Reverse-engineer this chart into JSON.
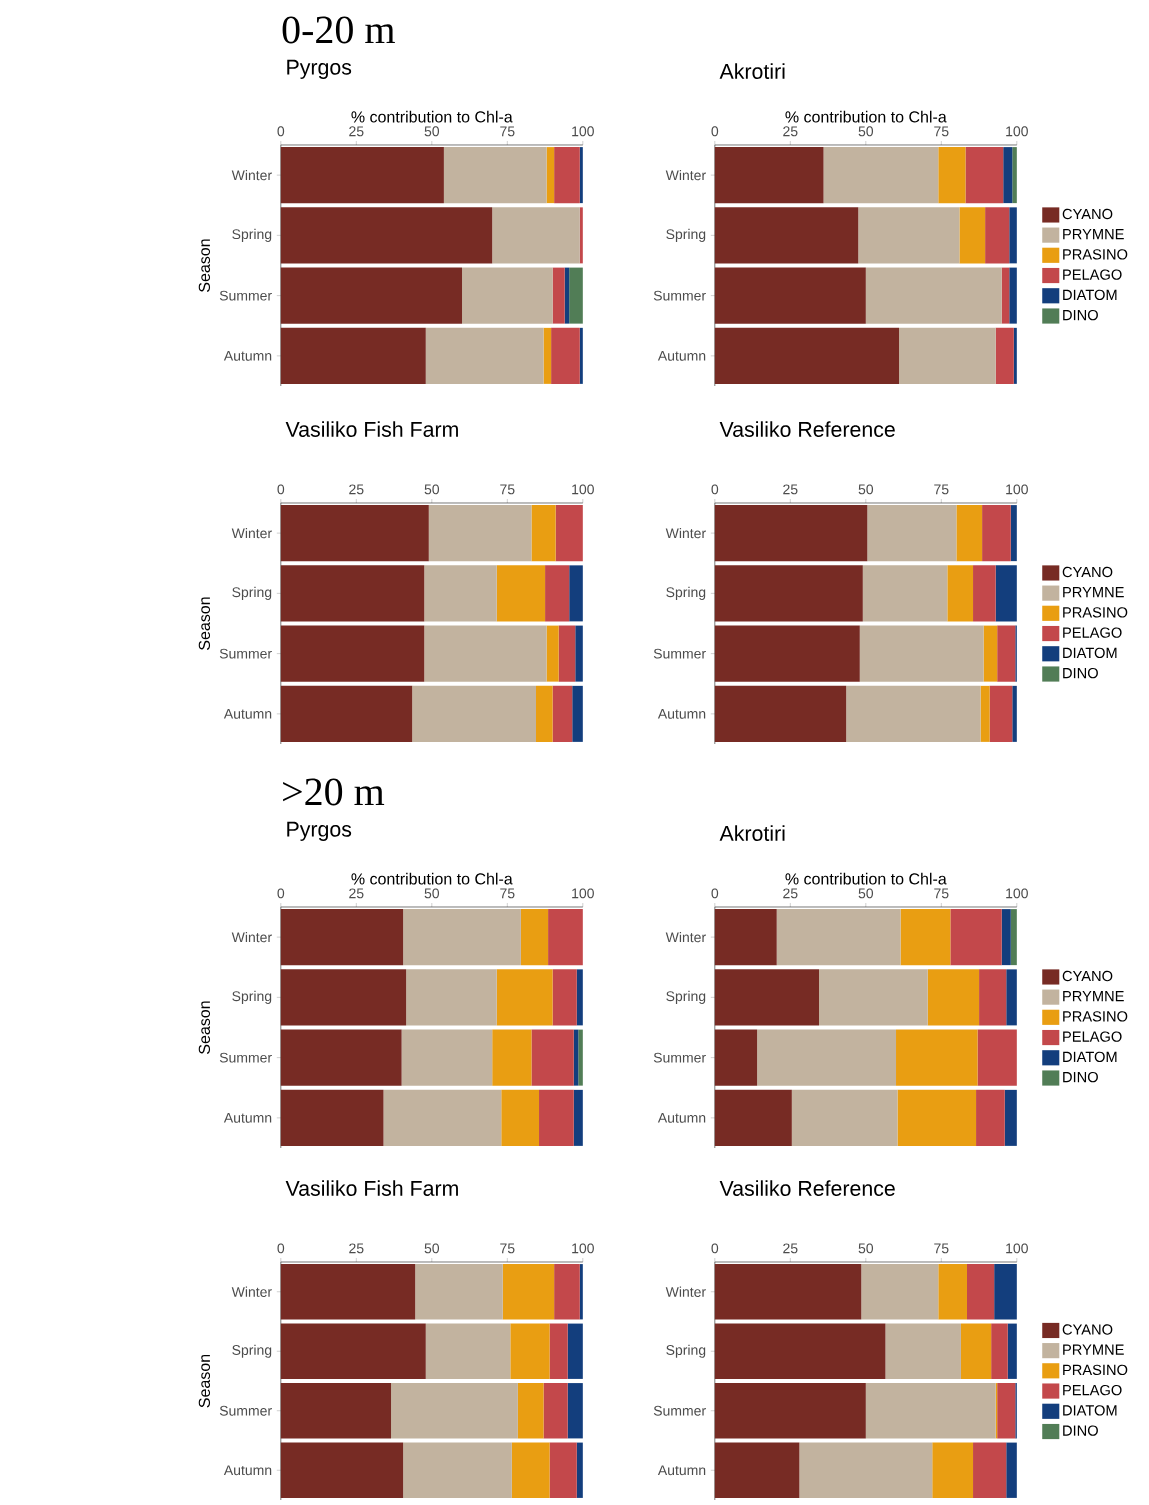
{
  "chart_data": [
    {
      "type": "bar",
      "orientation": "horizontal",
      "stacked": true,
      "title": "Pyrgos",
      "xlabel": "% contribution to Chl-a",
      "ylabel": "Season",
      "annotations": [
        "0-20 m"
      ],
      "categories": [
        "Winter",
        "Spring",
        "Summer",
        "Autumn"
      ],
      "xlim": [
        0,
        100
      ],
      "xticks": [
        0,
        25,
        50,
        75,
        100
      ],
      "series": [
        {
          "color": "#772b24",
          "values": [
            54,
            70,
            60,
            48
          ]
        },
        {
          "color": "#c2b39f",
          "values": [
            34,
            29,
            30,
            39
          ]
        },
        {
          "color": "#e99e12",
          "values": [
            2.5,
            0,
            0,
            2.5
          ]
        },
        {
          "color": "#c3484b",
          "values": [
            8.5,
            1,
            4,
            9.5
          ]
        },
        {
          "color": "#133e7d",
          "values": [
            1,
            0,
            1.5,
            1
          ]
        },
        {
          "color": "#517d56",
          "values": [
            0,
            0,
            4.5,
            0
          ]
        }
      ]
    },
    {
      "type": "bar",
      "orientation": "horizontal",
      "stacked": true,
      "title": "Akrotiri",
      "xlabel": "% contribution to Chl-a",
      "legend": "right",
      "categories": [
        "Winter",
        "Spring",
        "Summer",
        "Autumn"
      ],
      "xlim": [
        0,
        100
      ],
      "xticks": [
        0,
        25,
        50,
        75,
        100
      ],
      "series": [
        {
          "name": "CYANO",
          "color": "#772b24",
          "values": [
            36,
            47.5,
            50,
            61
          ]
        },
        {
          "name": "PRYMNE",
          "color": "#c2b39f",
          "values": [
            38,
            33.5,
            45,
            32
          ]
        },
        {
          "name": "PRASINO",
          "color": "#e99e12",
          "values": [
            9,
            8.5,
            0,
            0
          ]
        },
        {
          "name": "PELAGO",
          "color": "#c3484b",
          "values": [
            12.5,
            8,
            2.5,
            6
          ]
        },
        {
          "name": "DIATOM",
          "color": "#133e7d",
          "values": [
            3,
            2.5,
            2.5,
            1
          ]
        },
        {
          "name": "DINO",
          "color": "#517d56",
          "values": [
            1.5,
            0,
            0,
            0
          ]
        }
      ]
    },
    {
      "type": "bar",
      "orientation": "horizontal",
      "stacked": true,
      "title": "Vasiliko Fish Farm",
      "ylabel": "Season",
      "categories": [
        "Winter",
        "Spring",
        "Summer",
        "Autumn"
      ],
      "xlim": [
        0,
        100
      ],
      "xticks": [
        0,
        25,
        50,
        75,
        100
      ],
      "series": [
        {
          "color": "#772b24",
          "values": [
            49,
            47.5,
            47.5,
            43.5
          ]
        },
        {
          "color": "#c2b39f",
          "values": [
            34,
            24,
            40.5,
            41
          ]
        },
        {
          "color": "#e99e12",
          "values": [
            8,
            16,
            4,
            5.5
          ]
        },
        {
          "color": "#c3484b",
          "values": [
            9,
            8,
            5.5,
            6.5
          ]
        },
        {
          "color": "#133e7d",
          "values": [
            0,
            4.5,
            2.5,
            3.5
          ]
        },
        {
          "color": "#517d56",
          "values": [
            0,
            0,
            0,
            0
          ]
        }
      ]
    },
    {
      "type": "bar",
      "orientation": "horizontal",
      "stacked": true,
      "title": "Vasiliko Reference",
      "legend": "right",
      "categories": [
        "Winter",
        "Spring",
        "Summer",
        "Autumn"
      ],
      "xlim": [
        0,
        100
      ],
      "xticks": [
        0,
        25,
        50,
        75,
        100
      ],
      "series": [
        {
          "name": "CYANO",
          "color": "#772b24",
          "values": [
            50.5,
            49,
            48,
            43.5
          ]
        },
        {
          "name": "PRYMNE",
          "color": "#c2b39f",
          "values": [
            29.5,
            28,
            41,
            44.5
          ]
        },
        {
          "name": "PRASINO",
          "color": "#e99e12",
          "values": [
            8.5,
            8.5,
            4.5,
            3
          ]
        },
        {
          "name": "PELAGO",
          "color": "#c3484b",
          "values": [
            9.5,
            7.5,
            6,
            7.5
          ]
        },
        {
          "name": "DIATOM",
          "color": "#133e7d",
          "values": [
            2,
            7,
            0.5,
            1.5
          ]
        },
        {
          "name": "DINO",
          "color": "#517d56",
          "values": [
            0,
            0,
            0,
            0
          ]
        }
      ]
    },
    {
      "type": "bar",
      "orientation": "horizontal",
      "stacked": true,
      "title": "Pyrgos",
      "xlabel": "% contribution to Chl-a",
      "ylabel": "Season",
      "annotations": [
        ">20 m"
      ],
      "categories": [
        "Winter",
        "Spring",
        "Summer",
        "Autumn"
      ],
      "xlim": [
        0,
        100
      ],
      "xticks": [
        0,
        25,
        50,
        75,
        100
      ],
      "series": [
        {
          "color": "#772b24",
          "values": [
            40.5,
            41.5,
            40,
            34
          ]
        },
        {
          "color": "#c2b39f",
          "values": [
            39,
            30,
            30,
            39
          ]
        },
        {
          "color": "#e99e12",
          "values": [
            9,
            18.5,
            13,
            12.5
          ]
        },
        {
          "color": "#c3484b",
          "values": [
            11.5,
            8,
            14,
            11.5
          ]
        },
        {
          "color": "#133e7d",
          "values": [
            0,
            2,
            1.5,
            3
          ]
        },
        {
          "color": "#517d56",
          "values": [
            0,
            0,
            1.5,
            0
          ]
        }
      ]
    },
    {
      "type": "bar",
      "orientation": "horizontal",
      "stacked": true,
      "title": "Akrotiri",
      "xlabel": "% contribution to Chl-a",
      "legend": "right",
      "categories": [
        "Winter",
        "Spring",
        "Summer",
        "Autumn"
      ],
      "xlim": [
        0,
        100
      ],
      "xticks": [
        0,
        25,
        50,
        75,
        100
      ],
      "series": [
        {
          "name": "CYANO",
          "color": "#772b24",
          "values": [
            20.5,
            34.5,
            14,
            25.5
          ]
        },
        {
          "name": "PRYMNE",
          "color": "#c2b39f",
          "values": [
            41,
            36,
            46,
            35
          ]
        },
        {
          "name": "PRASINO",
          "color": "#e99e12",
          "values": [
            16.5,
            17,
            27,
            26
          ]
        },
        {
          "name": "PELAGO",
          "color": "#c3484b",
          "values": [
            17,
            9,
            13,
            9.5
          ]
        },
        {
          "name": "DIATOM",
          "color": "#133e7d",
          "values": [
            3,
            3.5,
            0,
            4
          ]
        },
        {
          "name": "DINO",
          "color": "#517d56",
          "values": [
            2,
            0,
            0,
            0
          ]
        }
      ]
    },
    {
      "type": "bar",
      "orientation": "horizontal",
      "stacked": true,
      "title": "Vasiliko Fish Farm",
      "ylabel": "Season",
      "categories": [
        "Winter",
        "Spring",
        "Summer",
        "Autumn"
      ],
      "xlim": [
        0,
        100
      ],
      "xticks": [
        0,
        25,
        50,
        75,
        100
      ],
      "series": [
        {
          "color": "#772b24",
          "values": [
            44.5,
            48,
            36.5,
            40.5
          ]
        },
        {
          "color": "#c2b39f",
          "values": [
            29,
            28,
            42,
            36
          ]
        },
        {
          "color": "#e99e12",
          "values": [
            17,
            13,
            8.5,
            12.5
          ]
        },
        {
          "color": "#c3484b",
          "values": [
            8.5,
            6,
            8,
            9
          ]
        },
        {
          "color": "#133e7d",
          "values": [
            1,
            5,
            5,
            2
          ]
        },
        {
          "color": "#517d56",
          "values": [
            0,
            0,
            0,
            0
          ]
        }
      ]
    },
    {
      "type": "bar",
      "orientation": "horizontal",
      "stacked": true,
      "title": "Vasiliko Reference",
      "legend": "right",
      "categories": [
        "Winter",
        "Spring",
        "Summer",
        "Autumn"
      ],
      "xlim": [
        0,
        100
      ],
      "xticks": [
        0,
        25,
        50,
        75,
        100
      ],
      "series": [
        {
          "name": "CYANO",
          "color": "#772b24",
          "values": [
            48.5,
            56.5,
            50,
            28
          ]
        },
        {
          "name": "PRYMNE",
          "color": "#c2b39f",
          "values": [
            25.5,
            25,
            43,
            44
          ]
        },
        {
          "name": "PRASINO",
          "color": "#e99e12",
          "values": [
            9.5,
            10,
            0.5,
            13.5
          ]
        },
        {
          "name": "PELAGO",
          "color": "#c3484b",
          "values": [
            9,
            5.5,
            6,
            11
          ]
        },
        {
          "name": "DIATOM",
          "color": "#133e7d",
          "values": [
            7.5,
            3,
            0.5,
            3.5
          ]
        },
        {
          "name": "DINO",
          "color": "#517d56",
          "values": [
            0,
            0,
            0,
            0
          ]
        }
      ]
    }
  ]
}
